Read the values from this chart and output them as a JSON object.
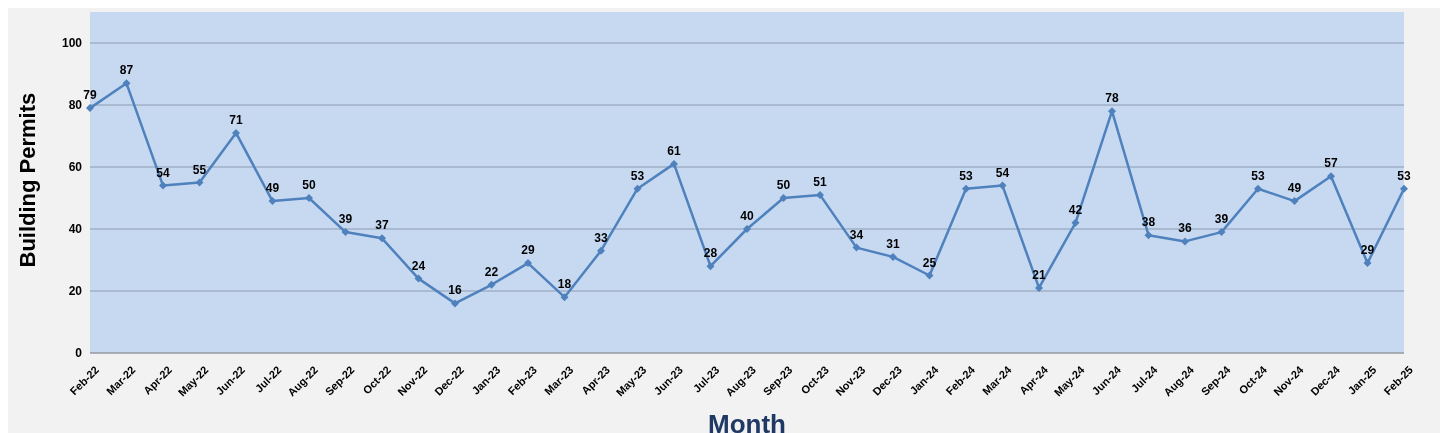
{
  "chart_data": {
    "type": "line",
    "xlabel": "Month",
    "ylabel": "Building Permits",
    "categories": [
      "Feb-22",
      "Mar-22",
      "Apr-22",
      "May-22",
      "Jun-22",
      "Jul-22",
      "Aug-22",
      "Sep-22",
      "Oct-22",
      "Nov-22",
      "Dec-22",
      "Jan-23",
      "Feb-23",
      "Mar-23",
      "Apr-23",
      "May-23",
      "Jun-23",
      "Jul-23",
      "Aug-23",
      "Sep-23",
      "Oct-23",
      "Nov-23",
      "Dec-23",
      "Jan-24",
      "Feb-24",
      "Mar-24",
      "Apr-24",
      "May-24",
      "Jun-24",
      "Jul-24",
      "Aug-24",
      "Sep-24",
      "Oct-24",
      "Nov-24",
      "Dec-24",
      "Jan-25",
      "Feb-25"
    ],
    "series": [
      {
        "color": "#4f81bd",
        "values": [
          79,
          87,
          54,
          55,
          71,
          49,
          50,
          39,
          37,
          24,
          16,
          22,
          29,
          18,
          33,
          53,
          61,
          28,
          40,
          50,
          51,
          34,
          31,
          25,
          53,
          54,
          21,
          42,
          78,
          38,
          36,
          39,
          53,
          49,
          57,
          29,
          53
        ]
      }
    ],
    "ylim": [
      0,
      110
    ],
    "yticks": [
      0,
      20,
      40,
      60,
      80,
      100
    ],
    "grid": "y",
    "marker": "diamond",
    "line_style": "solid",
    "data_labels": true,
    "legend": false
  }
}
